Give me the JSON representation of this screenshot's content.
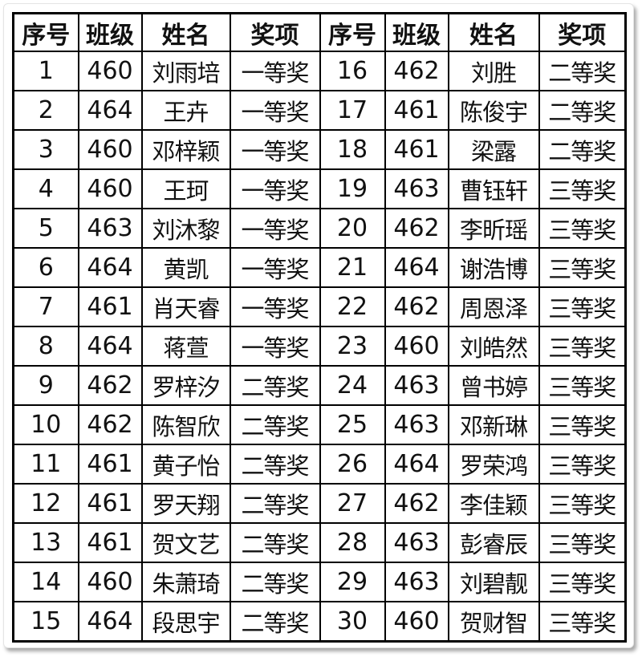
{
  "headers": [
    "序号",
    "班级",
    "姓名",
    "奖项",
    "序号",
    "班级",
    "姓名",
    "奖项"
  ],
  "rows": [
    [
      {
        "no": "1",
        "cls": "460",
        "name": "刘雨培",
        "award": "一等奖"
      },
      {
        "no": "16",
        "cls": "462",
        "name": "刘胜",
        "award": "二等奖"
      }
    ],
    [
      {
        "no": "2",
        "cls": "464",
        "name": "王卉",
        "award": "一等奖"
      },
      {
        "no": "17",
        "cls": "461",
        "name": "陈俊宇",
        "award": "二等奖"
      }
    ],
    [
      {
        "no": "3",
        "cls": "460",
        "name": "邓梓颖",
        "award": "一等奖"
      },
      {
        "no": "18",
        "cls": "461",
        "name": "梁露",
        "award": "二等奖"
      }
    ],
    [
      {
        "no": "4",
        "cls": "460",
        "name": "王珂",
        "award": "一等奖"
      },
      {
        "no": "19",
        "cls": "463",
        "name": "曹钰轩",
        "award": "三等奖"
      }
    ],
    [
      {
        "no": "5",
        "cls": "463",
        "name": "刘沐黎",
        "award": "一等奖"
      },
      {
        "no": "20",
        "cls": "462",
        "name": "李昕瑶",
        "award": "三等奖"
      }
    ],
    [
      {
        "no": "6",
        "cls": "464",
        "name": "黄凯",
        "award": "一等奖"
      },
      {
        "no": "21",
        "cls": "464",
        "name": "谢浩博",
        "award": "三等奖"
      }
    ],
    [
      {
        "no": "7",
        "cls": "461",
        "name": "肖天睿",
        "award": "一等奖"
      },
      {
        "no": "22",
        "cls": "462",
        "name": "周恩泽",
        "award": "三等奖"
      }
    ],
    [
      {
        "no": "8",
        "cls": "464",
        "name": "蒋萱",
        "award": "一等奖"
      },
      {
        "no": "23",
        "cls": "460",
        "name": "刘皓然",
        "award": "三等奖"
      }
    ],
    [
      {
        "no": "9",
        "cls": "462",
        "name": "罗梓汐",
        "award": "二等奖"
      },
      {
        "no": "24",
        "cls": "463",
        "name": "曾书婷",
        "award": "三等奖"
      }
    ],
    [
      {
        "no": "10",
        "cls": "462",
        "name": "陈智欣",
        "award": "二等奖"
      },
      {
        "no": "25",
        "cls": "463",
        "name": "邓新琳",
        "award": "三等奖"
      }
    ],
    [
      {
        "no": "11",
        "cls": "461",
        "name": "黄子怡",
        "award": "二等奖"
      },
      {
        "no": "26",
        "cls": "464",
        "name": "罗荣鸿",
        "award": "三等奖"
      }
    ],
    [
      {
        "no": "12",
        "cls": "461",
        "name": "罗天翔",
        "award": "二等奖"
      },
      {
        "no": "27",
        "cls": "462",
        "name": "李佳颖",
        "award": "三等奖"
      }
    ],
    [
      {
        "no": "13",
        "cls": "461",
        "name": "贺文艺",
        "award": "二等奖"
      },
      {
        "no": "28",
        "cls": "463",
        "name": "彭睿辰",
        "award": "三等奖"
      }
    ],
    [
      {
        "no": "14",
        "cls": "460",
        "name": "朱萧琦",
        "award": "二等奖"
      },
      {
        "no": "29",
        "cls": "463",
        "name": "刘碧靓",
        "award": "三等奖"
      }
    ],
    [
      {
        "no": "15",
        "cls": "464",
        "name": "段思宇",
        "award": "二等奖"
      },
      {
        "no": "30",
        "cls": "460",
        "name": "贺财智",
        "award": "三等奖"
      }
    ]
  ]
}
